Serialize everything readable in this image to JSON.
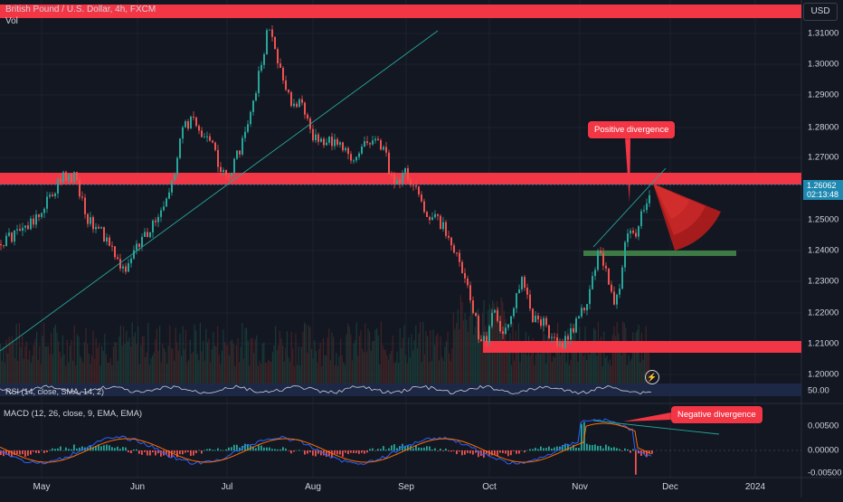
{
  "header": {
    "title": "British Pound / U.S. Dollar, 4h, FXCM",
    "vol_label": "Vol",
    "currency": "USD"
  },
  "price_tag": {
    "value": "1.26062",
    "countdown": "02:13:48"
  },
  "price_axis": [
    "1.31000",
    "1.30000",
    "1.29000",
    "1.28000",
    "1.27000",
    "1.25000",
    "1.24000",
    "1.23000",
    "1.22000",
    "1.21000",
    "1.20000"
  ],
  "rsi": {
    "label": "RSI (14, close, SMA, 14, 2)",
    "axis_value": "50.00"
  },
  "macd": {
    "label": "MACD (12, 26, close, 9, EMA, EMA)",
    "axis": [
      "0.00500",
      "0.00000",
      "-0.00500"
    ]
  },
  "date_axis": [
    "May",
    "Jun",
    "Jul",
    "Aug",
    "Sep",
    "Oct",
    "Nov",
    "Dec",
    "2024"
  ],
  "annotations": {
    "positive_divergence": "Positive divergence",
    "negative_divergence": "Negative divergence"
  },
  "colors": {
    "background": "#131722",
    "up": "#26a69a",
    "down": "#ef5350",
    "zone_red": "#f23645",
    "support_green": "#4caf50",
    "macd_line": "#2962ff",
    "signal_line": "#ff6d00"
  }
}
